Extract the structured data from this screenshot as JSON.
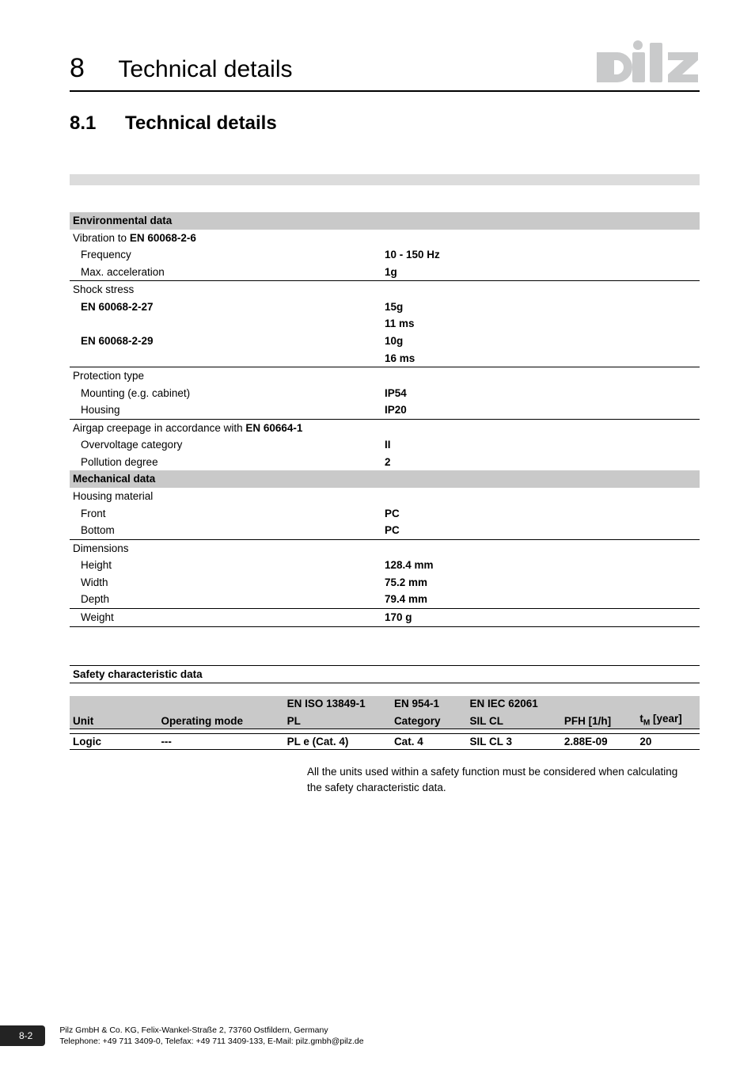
{
  "header": {
    "chapter_num": "8",
    "chapter_title": "Technical details",
    "logo_fill": "#c9cacb"
  },
  "section": {
    "num": "8.1",
    "title": "Technical details"
  },
  "spec": {
    "groups": [
      {
        "header": "Environmental data",
        "rows": [
          {
            "label": "Vibration to EN 60068-2-6",
            "value": "",
            "label_bold_part": "EN 60068-2-6",
            "label_prefix": "Vibration to ",
            "rule": false
          },
          {
            "label": "Frequency",
            "value": "10 - 150 Hz",
            "indent": true,
            "value_bold": true
          },
          {
            "label": "Max. acceleration",
            "value": "1g",
            "indent": true,
            "value_bold": true
          },
          {
            "label": "Shock stress",
            "value": "",
            "rule": true
          },
          {
            "label": "EN 60068-2-27",
            "value": "15g",
            "indent": true,
            "label_bold": true,
            "value_bold": true
          },
          {
            "label": "",
            "value": "11 ms",
            "value_bold": true
          },
          {
            "label": "EN 60068-2-29",
            "value": "10g",
            "indent": true,
            "label_bold": true,
            "value_bold": true
          },
          {
            "label": "",
            "value": "16 ms",
            "value_bold": true
          },
          {
            "label": "Protection type",
            "value": "",
            "rule": true
          },
          {
            "label": "Mounting (e.g. cabinet)",
            "value": "IP54",
            "indent": true,
            "value_bold": true
          },
          {
            "label": "Housing",
            "value": "IP20",
            "indent": true,
            "value_bold": true
          },
          {
            "label": "Airgap creepage in accordance with EN 60664-1",
            "value": "",
            "rule": true,
            "label_bold_part": "EN 60664-1",
            "label_prefix": "Airgap creepage in accordance with "
          },
          {
            "label": "Overvoltage category",
            "value": "II",
            "indent": true,
            "value_bold": true
          },
          {
            "label": "Pollution degree",
            "value": "2",
            "indent": true,
            "value_bold": true
          }
        ]
      },
      {
        "header": "Mechanical data",
        "rows": [
          {
            "label": "Housing material",
            "value": ""
          },
          {
            "label": "Front",
            "value": "PC",
            "indent": true,
            "value_bold": true
          },
          {
            "label": "Bottom",
            "value": "PC",
            "indent": true,
            "value_bold": true
          },
          {
            "label": "Dimensions",
            "value": "",
            "rule": true
          },
          {
            "label": "Height",
            "value": "128.4 mm",
            "indent": true,
            "value_bold": true
          },
          {
            "label": "Width",
            "value": "75.2 mm",
            "indent": true,
            "value_bold": true
          },
          {
            "label": "Depth",
            "value": "79.4 mm",
            "indent": true,
            "value_bold": true
          },
          {
            "label": "Weight",
            "value": "170 g",
            "indent": true,
            "value_bold": true,
            "rule": true,
            "rule_bottom": true
          }
        ]
      }
    ]
  },
  "safety": {
    "header": "Safety characteristic data",
    "columns": {
      "unit": "Unit",
      "mode": "Operating mode",
      "pl_top": "EN ISO 13849-1",
      "pl_bottom": "PL",
      "cat_top": "EN 954-1",
      "cat_bottom": "Category",
      "sil_top": "EN IEC 62061",
      "sil_bottom": "SIL CL",
      "pfh": "PFH [1/h]",
      "tm_prefix": "t",
      "tm_sub": "M",
      "tm_suffix": " [year]"
    },
    "row": {
      "unit": "Logic",
      "mode": "---",
      "pl": "PL e (Cat. 4)",
      "cat": "Cat. 4",
      "sil": "SIL CL 3",
      "pfh": "2.88E-09",
      "tm": "20"
    },
    "col_widths": [
      "14%",
      "20%",
      "17%",
      "12%",
      "15%",
      "12%",
      "10%"
    ]
  },
  "note": "All the units used within a safety function must be considered when calculating the safety characteristic data.",
  "footer": {
    "page": "8-2",
    "line1": "Pilz GmbH & Co. KG, Felix-Wankel-Straße 2, 73760 Ostfildern, Germany",
    "line2": "Telephone: +49 711 3409-0, Telefax: +49 711 3409-133, E-Mail: pilz.gmbh@pilz.de"
  },
  "colors": {
    "grey_bar": "#dcdcdc",
    "table_header_bg": "#c9c9c9",
    "rule": "#000000"
  }
}
